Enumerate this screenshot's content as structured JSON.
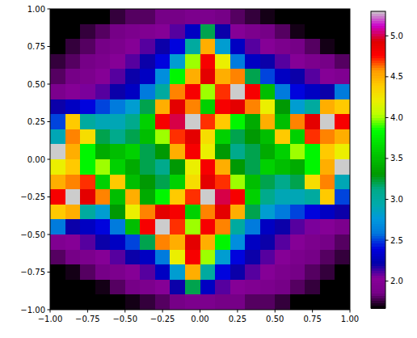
{
  "chart_data": {
    "type": "heatmap",
    "xlim": [
      -1,
      1
    ],
    "ylim": [
      -1,
      1
    ],
    "xticks": [
      {
        "value": -1,
        "label": "−1.00"
      },
      {
        "value": -0.75,
        "label": "−0.75"
      },
      {
        "value": -0.5,
        "label": "−0.50"
      },
      {
        "value": -0.25,
        "label": "−0.25"
      },
      {
        "value": 0,
        "label": "0.00"
      },
      {
        "value": 0.25,
        "label": "0.25"
      },
      {
        "value": 0.5,
        "label": "0.50"
      },
      {
        "value": 0.75,
        "label": "0.75"
      },
      {
        "value": 1,
        "label": "1.00"
      }
    ],
    "yticks": [
      {
        "value": -1,
        "label": "−1.00"
      },
      {
        "value": -0.75,
        "label": "−0.75"
      },
      {
        "value": -0.5,
        "label": "−0.50"
      },
      {
        "value": -0.25,
        "label": "−0.25"
      },
      {
        "value": 0,
        "label": "0.00"
      },
      {
        "value": 0.25,
        "label": "0.25"
      },
      {
        "value": 0.5,
        "label": "0.50"
      },
      {
        "value": 0.75,
        "label": "0.75"
      },
      {
        "value": 1,
        "label": "1.00"
      }
    ],
    "x": [
      -0.95,
      -0.85,
      -0.75,
      -0.65,
      -0.55,
      -0.45,
      -0.35,
      -0.25,
      -0.15,
      -0.05,
      0.05,
      0.15,
      0.25,
      0.35,
      0.45,
      0.55,
      0.65,
      0.75,
      0.85,
      0.95
    ],
    "y": [
      0.95,
      0.85,
      0.75,
      0.65,
      0.55,
      0.45,
      0.35,
      0.25,
      0.15,
      0.05,
      -0.05,
      -0.15,
      -0.25,
      -0.35,
      -0.45,
      -0.55,
      -0.65,
      -0.75,
      -0.85,
      -0.95
    ],
    "values": [
      [
        1.6,
        1.6,
        1.6,
        1.6,
        1.75,
        1.8,
        1.8,
        1.85,
        1.85,
        1.9,
        1.9,
        1.85,
        1.8,
        1.75,
        1.7,
        1.6,
        1.6,
        1.6,
        1.6,
        1.6
      ],
      [
        1.6,
        1.6,
        1.75,
        1.8,
        1.85,
        1.9,
        1.95,
        2.0,
        2.1,
        2.3,
        3.2,
        2.2,
        2.0,
        1.9,
        1.85,
        1.8,
        1.7,
        1.6,
        1.6,
        1.6
      ],
      [
        1.65,
        1.75,
        1.8,
        1.85,
        1.9,
        2.0,
        2.1,
        2.2,
        2.4,
        3.0,
        4.5,
        2.8,
        2.3,
        2.1,
        2.0,
        1.9,
        1.85,
        1.8,
        1.7,
        1.6
      ],
      [
        1.75,
        1.8,
        1.85,
        1.9,
        2.0,
        2.1,
        2.2,
        2.4,
        2.8,
        4.0,
        4.8,
        4.2,
        2.6,
        2.3,
        2.2,
        2.1,
        2.0,
        1.9,
        1.85,
        1.8
      ],
      [
        1.8,
        1.85,
        1.9,
        2.0,
        2.1,
        2.2,
        2.3,
        2.7,
        3.8,
        4.5,
        4.9,
        4.5,
        4.6,
        3.2,
        2.5,
        2.3,
        2.2,
        2.1,
        2.0,
        1.95
      ],
      [
        1.9,
        2.0,
        2.05,
        2.1,
        2.2,
        2.3,
        2.6,
        3.0,
        4.6,
        4.8,
        4.0,
        4.7,
        5.3,
        4.8,
        3.5,
        2.6,
        2.4,
        2.3,
        2.2,
        2.6
      ],
      [
        2.2,
        2.3,
        2.4,
        2.5,
        2.6,
        2.8,
        3.2,
        4.5,
        4.9,
        4.6,
        3.6,
        4.8,
        4.9,
        4.6,
        4.2,
        3.3,
        2.8,
        3.0,
        4.5,
        4.4
      ],
      [
        2.5,
        4.4,
        3.0,
        2.9,
        2.9,
        3.1,
        3.6,
        4.8,
        5.0,
        5.3,
        4.7,
        4.4,
        3.8,
        3.4,
        4.5,
        3.5,
        4.6,
        4.9,
        5.3,
        4.8
      ],
      [
        2.9,
        4.6,
        4.3,
        3.2,
        3.1,
        3.2,
        3.5,
        4.0,
        4.7,
        4.9,
        4.3,
        3.6,
        3.2,
        3.3,
        3.5,
        4.4,
        3.6,
        4.7,
        4.6,
        4.5
      ],
      [
        5.3,
        4.5,
        3.8,
        3.4,
        3.5,
        3.6,
        3.2,
        3.3,
        4.5,
        4.8,
        4.2,
        3.3,
        3.1,
        3.2,
        3.4,
        3.6,
        4.0,
        3.8,
        4.4,
        4.2
      ],
      [
        4.2,
        4.4,
        3.8,
        4.0,
        3.6,
        3.4,
        3.2,
        3.1,
        3.3,
        4.2,
        4.8,
        4.5,
        3.3,
        3.2,
        3.6,
        3.5,
        3.4,
        3.8,
        4.5,
        5.3
      ],
      [
        4.5,
        4.6,
        4.7,
        3.6,
        4.4,
        3.5,
        3.3,
        3.2,
        3.6,
        4.3,
        4.9,
        4.7,
        4.0,
        3.5,
        3.2,
        3.1,
        3.2,
        4.3,
        4.6,
        2.9
      ],
      [
        4.8,
        5.3,
        4.9,
        4.6,
        3.5,
        4.5,
        3.4,
        3.8,
        4.4,
        4.7,
        5.3,
        5.0,
        4.8,
        3.6,
        3.1,
        2.9,
        2.9,
        3.0,
        4.4,
        2.5
      ],
      [
        4.4,
        4.5,
        3.0,
        2.8,
        3.3,
        4.2,
        4.6,
        4.9,
        4.8,
        3.6,
        4.6,
        4.9,
        4.5,
        3.2,
        2.8,
        2.6,
        2.5,
        2.4,
        2.3,
        2.2
      ],
      [
        2.6,
        2.2,
        2.3,
        2.4,
        2.6,
        3.5,
        4.8,
        5.3,
        4.7,
        4.0,
        4.8,
        4.6,
        3.0,
        2.6,
        2.3,
        2.2,
        2.1,
        2.05,
        2.0,
        1.9
      ],
      [
        1.95,
        2.0,
        2.1,
        2.2,
        2.3,
        2.5,
        3.2,
        4.6,
        4.5,
        4.9,
        4.5,
        3.8,
        2.7,
        2.3,
        2.2,
        2.1,
        2.0,
        1.9,
        1.85,
        1.8
      ],
      [
        1.8,
        1.85,
        1.9,
        2.0,
        2.1,
        2.2,
        2.3,
        2.6,
        4.2,
        4.8,
        4.0,
        2.8,
        2.4,
        2.2,
        2.1,
        2.0,
        1.9,
        1.85,
        1.8,
        1.75
      ],
      [
        1.6,
        1.7,
        1.8,
        1.85,
        1.9,
        2.0,
        2.1,
        2.3,
        2.8,
        4.5,
        3.0,
        2.4,
        2.2,
        2.1,
        2.0,
        1.9,
        1.85,
        1.8,
        1.75,
        1.65
      ],
      [
        1.6,
        1.6,
        1.6,
        1.7,
        1.8,
        1.85,
        1.9,
        2.0,
        2.2,
        3.2,
        2.3,
        2.1,
        2.0,
        1.95,
        1.9,
        1.85,
        1.8,
        1.75,
        1.6,
        1.6
      ],
      [
        1.6,
        1.6,
        1.6,
        1.6,
        1.6,
        1.7,
        1.75,
        1.8,
        1.85,
        1.9,
        1.9,
        1.85,
        1.85,
        1.8,
        1.8,
        1.75,
        1.6,
        1.6,
        1.6,
        1.6
      ]
    ],
    "colorbar_range": [
      1.67,
      5.3
    ],
    "colorbar_ticks": [
      {
        "value": 2,
        "label": "2.0"
      },
      {
        "value": 2.5,
        "label": "2.5"
      },
      {
        "value": 3,
        "label": "3.0"
      },
      {
        "value": 3.5,
        "label": "3.5"
      },
      {
        "value": 4,
        "label": "4.0"
      },
      {
        "value": 4.5,
        "label": "4.5"
      },
      {
        "value": 5,
        "label": "5.0"
      }
    ]
  }
}
